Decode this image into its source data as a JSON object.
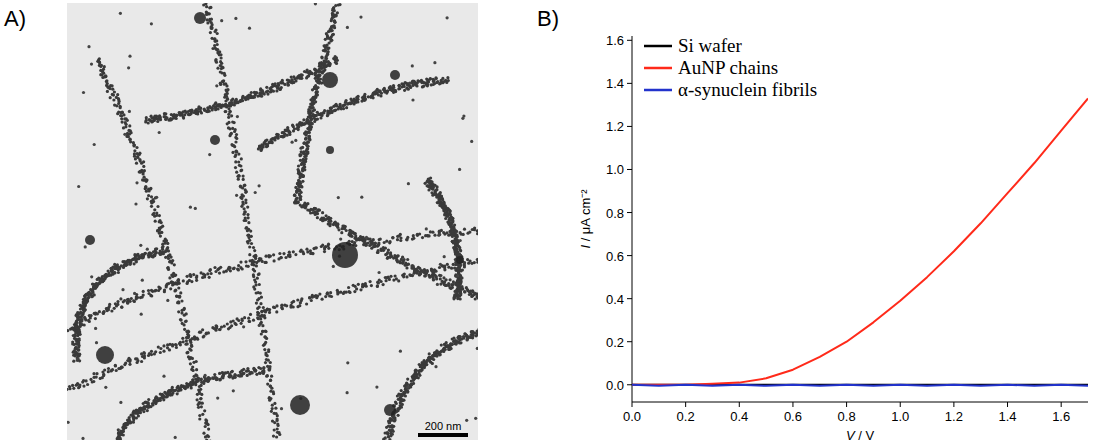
{
  "micrograph": {
    "panel_label": "A)",
    "scale_bar": "200 nm"
  },
  "chart_data": {
    "type": "line",
    "panel_label": "B)",
    "x_label": "V / V",
    "y_label": "I / μA cm⁻²",
    "x": [
      0.0,
      0.1,
      0.2,
      0.3,
      0.4,
      0.5,
      0.6,
      0.7,
      0.8,
      0.9,
      1.0,
      1.1,
      1.2,
      1.3,
      1.4,
      1.5,
      1.6,
      1.7
    ],
    "series": [
      {
        "name": "Si wafer",
        "color": "#000000",
        "values": [
          0.0,
          0.0,
          0.0,
          0.0,
          0.0,
          0.0,
          0.0,
          0.0,
          0.0,
          0.0,
          0.0,
          0.0,
          0.0,
          0.0,
          0.0,
          0.0,
          0.0,
          0.0
        ]
      },
      {
        "name": "AuNP chains",
        "color": "#ff2a1a",
        "values": [
          0.0,
          0.0,
          0.0,
          0.005,
          0.01,
          0.03,
          0.07,
          0.13,
          0.2,
          0.29,
          0.39,
          0.5,
          0.62,
          0.75,
          0.89,
          1.03,
          1.18,
          1.33
        ]
      },
      {
        "name": "α-synuclein fibrils",
        "color": "#2233cc",
        "values": [
          0.0,
          -0.005,
          0.0,
          -0.005,
          0.0,
          -0.005,
          0.0,
          -0.005,
          0.0,
          -0.005,
          0.0,
          -0.005,
          0.0,
          -0.005,
          0.0,
          -0.005,
          0.0,
          -0.005
        ]
      }
    ],
    "xlim": [
      0,
      1.7
    ],
    "xticks": [
      {
        "value": 0,
        "label": "0.0"
      },
      0.2,
      0.4,
      0.6,
      0.8,
      {
        "value": 1,
        "label": "1.0"
      },
      1.2,
      1.4,
      1.6
    ],
    "ylim": [
      -0.08,
      1.62
    ],
    "yticks": [
      {
        "value": 0,
        "label": "0.0"
      },
      0.2,
      0.4,
      0.6,
      0.8,
      {
        "value": 1,
        "label": "1.0"
      },
      1.2,
      1.4,
      1.6
    ],
    "legend": "upper left",
    "grid": false
  }
}
